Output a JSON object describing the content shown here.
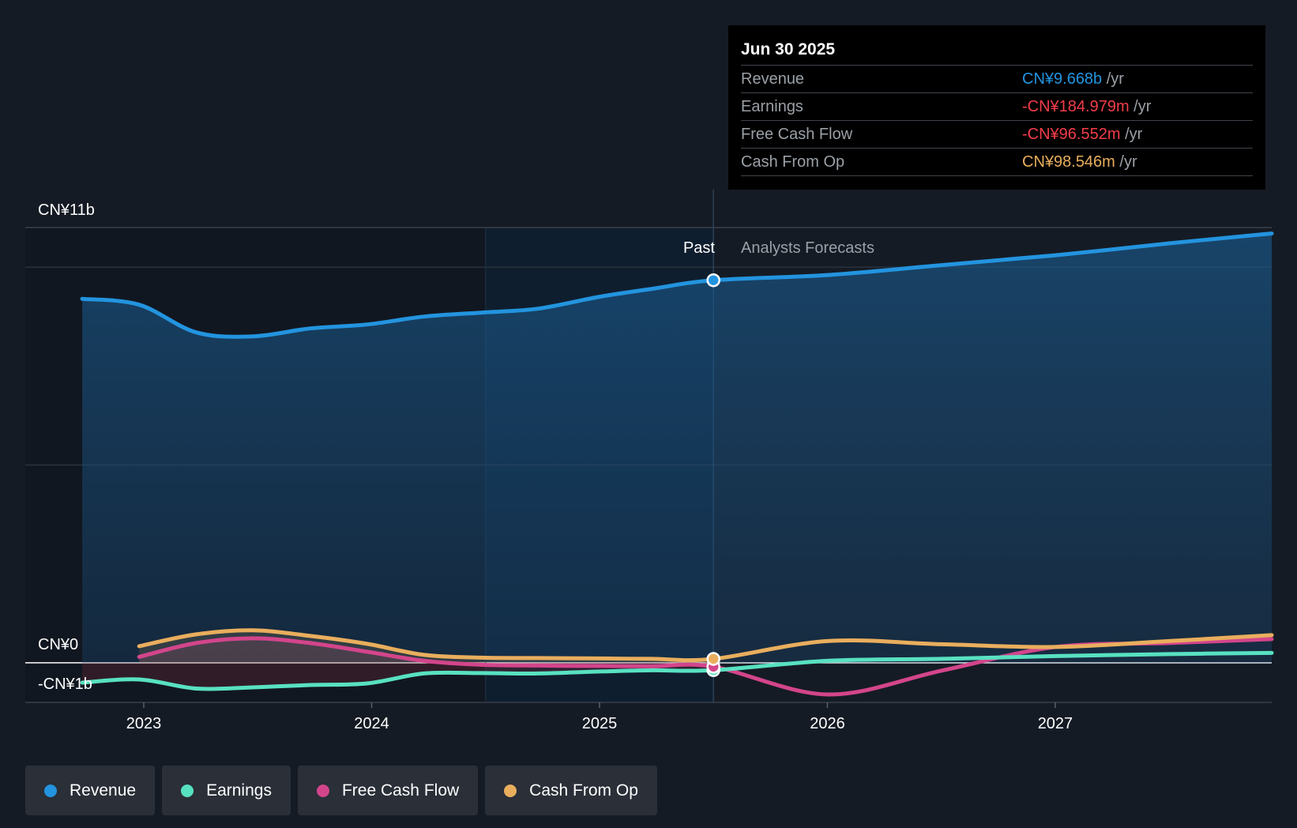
{
  "chart_data": {
    "type": "line",
    "title": "",
    "x_range": [
      2022.48,
      2027.95
    ],
    "y_range": [
      -1,
      11
    ],
    "y_axis_labels": {
      "top": "CN¥11b",
      "zero": "CN¥0",
      "bottom": "-CN¥1b"
    },
    "x_ticks": [
      {
        "value": 2023,
        "label": "2023"
      },
      {
        "value": 2024,
        "label": "2024"
      },
      {
        "value": 2025,
        "label": "2025"
      },
      {
        "value": 2026,
        "label": "2026"
      },
      {
        "value": 2027,
        "label": "2027"
      }
    ],
    "past_label": "Past",
    "forecast_label": "Analysts Forecasts",
    "past_end": 2025.5,
    "highlight_start": 2024.5,
    "series": [
      {
        "name": "Revenue",
        "color": "#2394df",
        "area": true,
        "points": [
          [
            2022.73,
            9.2
          ],
          [
            2022.98,
            9.05
          ],
          [
            2023.23,
            8.35
          ],
          [
            2023.48,
            8.25
          ],
          [
            2023.73,
            8.45
          ],
          [
            2023.98,
            8.55
          ],
          [
            2024.23,
            8.75
          ],
          [
            2024.48,
            8.85
          ],
          [
            2024.73,
            8.95
          ],
          [
            2025.0,
            9.25
          ],
          [
            2025.23,
            9.45
          ],
          [
            2025.5,
            9.668
          ],
          [
            2026.0,
            9.8
          ],
          [
            2026.5,
            10.05
          ],
          [
            2027.0,
            10.3
          ],
          [
            2027.5,
            10.6
          ],
          [
            2027.95,
            10.85
          ]
        ]
      },
      {
        "name": "Earnings",
        "color": "#58e1c1",
        "area": false,
        "points": [
          [
            2022.73,
            -0.5
          ],
          [
            2022.98,
            -0.42
          ],
          [
            2023.23,
            -0.65
          ],
          [
            2023.48,
            -0.62
          ],
          [
            2023.73,
            -0.56
          ],
          [
            2023.98,
            -0.52
          ],
          [
            2024.23,
            -0.27
          ],
          [
            2024.48,
            -0.26
          ],
          [
            2024.73,
            -0.27
          ],
          [
            2025.0,
            -0.22
          ],
          [
            2025.23,
            -0.19
          ],
          [
            2025.5,
            -0.185
          ],
          [
            2026.0,
            0.05
          ],
          [
            2026.5,
            0.1
          ],
          [
            2027.0,
            0.17
          ],
          [
            2027.5,
            0.22
          ],
          [
            2027.95,
            0.25
          ]
        ]
      },
      {
        "name": "Free Cash Flow",
        "color": "#d3458b",
        "area": true,
        "points": [
          [
            2022.98,
            0.15
          ],
          [
            2023.23,
            0.5
          ],
          [
            2023.48,
            0.62
          ],
          [
            2023.73,
            0.5
          ],
          [
            2023.98,
            0.28
          ],
          [
            2024.23,
            0.05
          ],
          [
            2024.48,
            -0.05
          ],
          [
            2024.73,
            -0.07
          ],
          [
            2025.0,
            -0.08
          ],
          [
            2025.23,
            -0.09
          ],
          [
            2025.5,
            -0.097
          ],
          [
            2026.0,
            -0.8
          ],
          [
            2026.5,
            -0.2
          ],
          [
            2027.0,
            0.4
          ],
          [
            2027.5,
            0.5
          ],
          [
            2027.95,
            0.6
          ]
        ]
      },
      {
        "name": "Cash From Op",
        "color": "#e9ae5d",
        "area": true,
        "points": [
          [
            2022.98,
            0.42
          ],
          [
            2023.23,
            0.72
          ],
          [
            2023.48,
            0.82
          ],
          [
            2023.73,
            0.68
          ],
          [
            2023.98,
            0.48
          ],
          [
            2024.23,
            0.2
          ],
          [
            2024.48,
            0.13
          ],
          [
            2024.73,
            0.12
          ],
          [
            2025.0,
            0.11
          ],
          [
            2025.23,
            0.1
          ],
          [
            2025.5,
            0.099
          ],
          [
            2026.0,
            0.55
          ],
          [
            2026.5,
            0.47
          ],
          [
            2027.0,
            0.4
          ],
          [
            2027.5,
            0.55
          ],
          [
            2027.95,
            0.7
          ]
        ]
      }
    ]
  },
  "tooltip": {
    "date": "Jun 30 2025",
    "unit": "/yr",
    "rows": [
      {
        "label": "Revenue",
        "value": "CN¥9.668b",
        "color": "#2394df"
      },
      {
        "label": "Earnings",
        "value": "-CN¥184.979m",
        "color": "#f23d4a"
      },
      {
        "label": "Free Cash Flow",
        "value": "-CN¥96.552m",
        "color": "#f23d4a"
      },
      {
        "label": "Cash From Op",
        "value": "CN¥98.546m",
        "color": "#e9ae5d"
      }
    ]
  },
  "legend": [
    {
      "label": "Revenue",
      "color": "#2394df"
    },
    {
      "label": "Earnings",
      "color": "#58e1c1"
    },
    {
      "label": "Free Cash Flow",
      "color": "#d3458b"
    },
    {
      "label": "Cash From Op",
      "color": "#e9ae5d"
    }
  ]
}
